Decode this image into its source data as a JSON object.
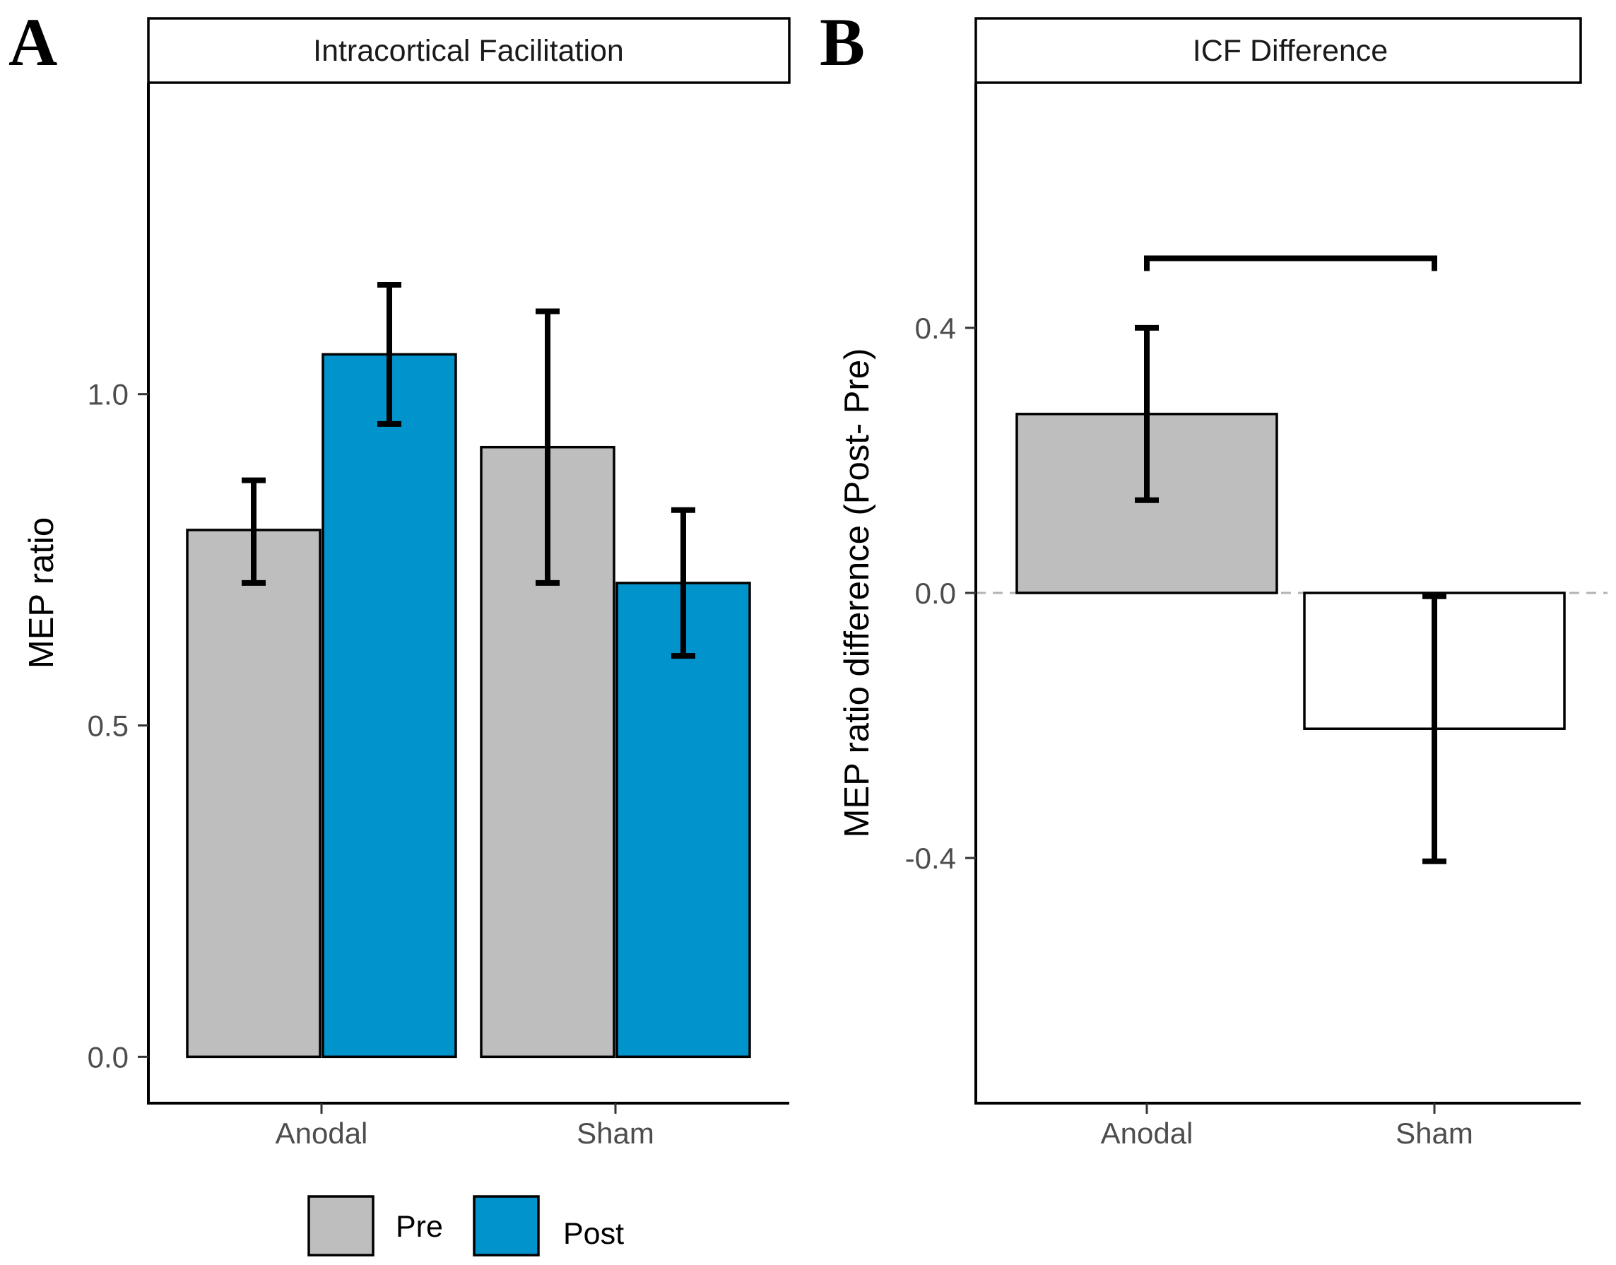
{
  "colors": {
    "pre": "#bebebe",
    "post": "#0093cc",
    "sham_diff": "#ffffff",
    "outline": "#000000",
    "zero_line": "#b3b3b3"
  },
  "chart_data": [
    {
      "panel_letter": "A",
      "type": "bar",
      "title": "Intracortical Facilitation",
      "xlabel": "",
      "ylabel": "MEP ratio",
      "ylim": [
        -0.07,
        1.47
      ],
      "yticks": [
        0.0,
        0.5,
        1.0
      ],
      "ytick_labels": [
        "0.0",
        "0.5",
        "1.0"
      ],
      "categories": [
        "Anodal",
        "Sham"
      ],
      "series": [
        {
          "name": "Pre",
          "values": [
            0.795,
            0.92
          ],
          "err_low": [
            0.715,
            0.715
          ],
          "err_high": [
            0.87,
            1.125
          ]
        },
        {
          "name": "Post",
          "values": [
            1.06,
            0.715
          ],
          "err_low": [
            0.955,
            0.605
          ],
          "err_high": [
            1.165,
            0.825
          ]
        }
      ],
      "legend": {
        "position": "bottom",
        "entries": [
          "Pre",
          "Post"
        ]
      }
    },
    {
      "panel_letter": "B",
      "type": "bar",
      "title": "ICF Difference",
      "xlabel": "",
      "ylabel": "MEP ratio difference (Post- Pre)",
      "ylim": [
        -0.77,
        0.77
      ],
      "yticks": [
        -0.4,
        0.0,
        0.4
      ],
      "ytick_labels": [
        "-0.4",
        "0.0",
        "0.4"
      ],
      "categories": [
        "Anodal",
        "Sham"
      ],
      "values": [
        0.27,
        -0.205
      ],
      "err_low": [
        0.14,
        -0.405
      ],
      "err_high": [
        0.4,
        -0.005
      ],
      "reference_line": 0.0,
      "significance_bracket": {
        "from": "Anodal",
        "to": "Sham",
        "y": 0.505
      }
    }
  ]
}
